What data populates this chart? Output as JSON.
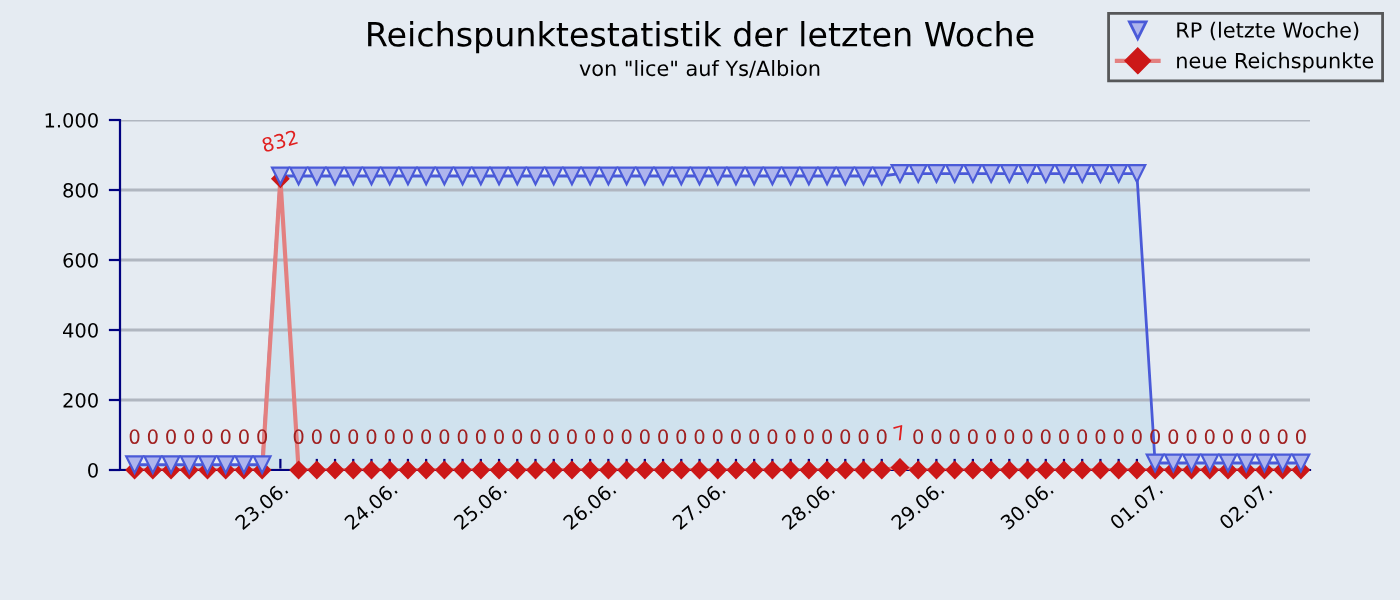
{
  "chart_data": {
    "type": "line",
    "title": "Reichspunktestatistik der letzten Woche",
    "subtitle": "von \"lice\" auf Ys/Albion",
    "categories": [
      null,
      null,
      null,
      null,
      null,
      null,
      null,
      null,
      "23.06.",
      null,
      null,
      null,
      null,
      null,
      "24.06.",
      null,
      null,
      null,
      null,
      null,
      "25.06.",
      null,
      null,
      null,
      null,
      null,
      "26.06.",
      null,
      null,
      null,
      null,
      null,
      "27.06.",
      null,
      null,
      null,
      null,
      null,
      "28.06.",
      null,
      null,
      null,
      null,
      null,
      "29.06.",
      null,
      null,
      null,
      null,
      null,
      "30.06.",
      null,
      null,
      null,
      null,
      null,
      "01.07.",
      null,
      null,
      null,
      null,
      null,
      "02.07.",
      null,
      null
    ],
    "series": [
      {
        "name": "RP (letzte Woche)",
        "type": "area",
        "marker": "triangle",
        "color": "#4a5ad8",
        "values": [
          15,
          15,
          15,
          15,
          15,
          15,
          15,
          15,
          840,
          840,
          840,
          840,
          840,
          840,
          840,
          840,
          840,
          840,
          840,
          840,
          840,
          840,
          840,
          840,
          840,
          840,
          840,
          840,
          840,
          840,
          840,
          840,
          840,
          840,
          840,
          840,
          840,
          840,
          840,
          840,
          840,
          840,
          847,
          847,
          847,
          847,
          847,
          847,
          847,
          847,
          847,
          847,
          847,
          847,
          847,
          847,
          20,
          20,
          20,
          20,
          20,
          20,
          20,
          20,
          20
        ]
      },
      {
        "name": "neue Reichspunkte",
        "marker": "diamond",
        "color": "#cc1818",
        "data_labels": true,
        "values": [
          0,
          0,
          0,
          0,
          0,
          0,
          0,
          0,
          832,
          0,
          0,
          0,
          0,
          0,
          0,
          0,
          0,
          0,
          0,
          0,
          0,
          0,
          0,
          0,
          0,
          0,
          0,
          0,
          0,
          0,
          0,
          0,
          0,
          0,
          0,
          0,
          0,
          0,
          0,
          0,
          0,
          0,
          7,
          0,
          0,
          0,
          0,
          0,
          0,
          0,
          0,
          0,
          0,
          0,
          0,
          0,
          0,
          0,
          0,
          0,
          0,
          0,
          0,
          0,
          0
        ]
      }
    ],
    "ylim": [
      0,
      1000
    ],
    "yticks": [
      0,
      200,
      400,
      600,
      800,
      {
        "value": 1000,
        "label": "1.000"
      }
    ],
    "grid": "y",
    "legend": "top right"
  }
}
